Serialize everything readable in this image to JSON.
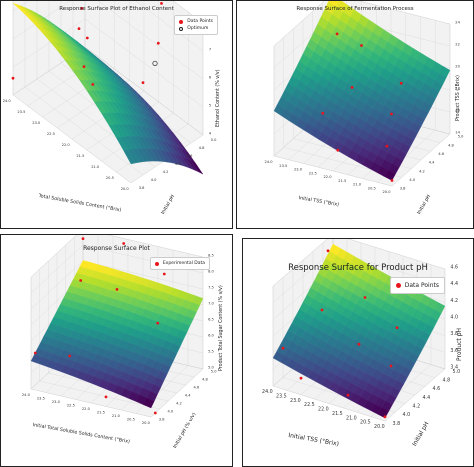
{
  "chart_data": [
    {
      "type": "surface3d",
      "title": "Response Surface Plot of Ethanol Content",
      "xlabel": "Total Soluble Solids Content (°Brix)",
      "ylabel": "Initial pH",
      "zlabel": "Ethanol Content (% v/v)",
      "x_ticks": [
        "20.0",
        "20.5",
        "21.0",
        "21.5",
        "22.0",
        "22.5",
        "23.0",
        "23.5",
        "24.0"
      ],
      "y_ticks": [
        "3.8",
        "4.0",
        "4.2",
        "4.4",
        "4.6",
        "4.8",
        "5.0"
      ],
      "z_ticks": [
        "4",
        "5",
        "6",
        "7",
        "8"
      ],
      "xlim": [
        20.0,
        24.0
      ],
      "ylim": [
        3.8,
        5.0
      ],
      "zlim": [
        4,
        8
      ],
      "legend": [
        "Data Points",
        "Optimum"
      ],
      "legend_position": "top-right",
      "colormap": "viridis",
      "points": [
        {
          "x": 20.0,
          "y": 4.0,
          "z": 7.3
        },
        {
          "x": 20.5,
          "y": 4.5,
          "z": 7.6
        },
        {
          "x": 21.0,
          "y": 4.8,
          "z": 8.2
        },
        {
          "x": 21.5,
          "y": 3.9,
          "z": 6.2
        },
        {
          "x": 22.5,
          "y": 4.3,
          "z": 6.5
        },
        {
          "x": 23.5,
          "y": 4.7,
          "z": 6.2
        },
        {
          "x": 24.0,
          "y": 3.8,
          "z": 4.6
        },
        {
          "x": 24.0,
          "y": 4.9,
          "z": 4.8
        },
        {
          "x": 22.0,
          "y": 4.0,
          "z": 6.3
        }
      ],
      "optimum": {
        "x": 20.0,
        "y": 4.2,
        "z": 7.7
      }
    },
    {
      "type": "surface3d",
      "title": "Response Surface of Fermentation Process",
      "xlabel": "Initial TSS (°Brix)",
      "ylabel": "Initial pH",
      "zlabel": "Product TSS (°Brix)",
      "x_ticks": [
        "20.0",
        "20.5",
        "21.0",
        "21.5",
        "22.0",
        "22.5",
        "23.0",
        "23.5",
        "24.0"
      ],
      "y_ticks": [
        "3.8",
        "4.0",
        "4.2",
        "4.4",
        "4.6",
        "4.8",
        "5.0"
      ],
      "z_ticks": [
        "14",
        "16",
        "18",
        "20",
        "22",
        "24"
      ],
      "xlim": [
        20.0,
        24.0
      ],
      "ylim": [
        3.8,
        5.0
      ],
      "zlim": [
        14,
        24
      ],
      "colormap": "viridis",
      "points": [
        {
          "x": 20.0,
          "y": 3.8,
          "z": 14.5
        },
        {
          "x": 20.5,
          "y": 4.0,
          "z": 16.5
        },
        {
          "x": 21.0,
          "y": 4.4,
          "z": 17.5
        },
        {
          "x": 21.0,
          "y": 4.6,
          "z": 19.5
        },
        {
          "x": 22.0,
          "y": 3.9,
          "z": 15.5
        },
        {
          "x": 22.5,
          "y": 4.5,
          "z": 18.5
        },
        {
          "x": 23.0,
          "y": 4.2,
          "z": 17.0
        },
        {
          "x": 23.5,
          "y": 4.8,
          "z": 21.5
        },
        {
          "x": 24.0,
          "y": 5.0,
          "z": 23.5
        },
        {
          "x": 23.0,
          "y": 5.0,
          "z": 20.0
        }
      ]
    },
    {
      "type": "surface3d",
      "title": "Response Surface Plot",
      "xlabel": "Initial Total Soluble Solids Content (°Brix)",
      "ylabel": "Initial pH (% v/v)",
      "zlabel": "Product Total Sugar Content (% v/v)",
      "x_ticks": [
        "20.0",
        "20.5",
        "21.0",
        "21.5",
        "22.0",
        "22.5",
        "23.0",
        "23.5",
        "24.0"
      ],
      "y_ticks": [
        "3.8",
        "4.0",
        "4.2",
        "4.4",
        "4.6",
        "4.8",
        "5.0"
      ],
      "z_ticks": [
        "5.0",
        "5.5",
        "6.0",
        "6.5",
        "7.0",
        "7.5",
        "8.0",
        "8.5"
      ],
      "xlim": [
        20.0,
        24.0
      ],
      "ylim": [
        3.8,
        5.0
      ],
      "zlim": [
        5.0,
        8.5
      ],
      "legend": [
        "Experimental Data"
      ],
      "legend_position": "top-right",
      "colormap": "viridis",
      "points": [
        {
          "x": 20.0,
          "y": 3.9,
          "z": 5.0
        },
        {
          "x": 20.5,
          "y": 4.3,
          "z": 7.2
        },
        {
          "x": 21.0,
          "y": 4.8,
          "z": 8.0
        },
        {
          "x": 21.5,
          "y": 3.8,
          "z": 5.3
        },
        {
          "x": 22.0,
          "y": 4.4,
          "z": 7.8
        },
        {
          "x": 22.5,
          "y": 4.9,
          "z": 8.5
        },
        {
          "x": 23.0,
          "y": 4.0,
          "z": 6.0
        },
        {
          "x": 23.5,
          "y": 4.6,
          "z": 7.5
        },
        {
          "x": 24.0,
          "y": 3.9,
          "z": 6.0
        },
        {
          "x": 24.0,
          "y": 5.0,
          "z": 8.2
        }
      ]
    },
    {
      "type": "surface3d",
      "title": "Response Surface for Product pH",
      "xlabel": "Initial TSS (°Brix)",
      "ylabel": "Initial pH",
      "zlabel": "Product pH",
      "x_ticks": [
        "20.0",
        "20.5",
        "21.0",
        "21.5",
        "22.0",
        "22.5",
        "23.0",
        "23.5",
        "24.0"
      ],
      "y_ticks": [
        "3.8",
        "4.0",
        "4.2",
        "4.4",
        "4.6",
        "4.8",
        "5.0"
      ],
      "z_ticks": [
        "3.4",
        "3.6",
        "3.8",
        "4.0",
        "4.2",
        "4.4",
        "4.6"
      ],
      "xlim": [
        20.0,
        24.0
      ],
      "ylim": [
        3.8,
        5.0
      ],
      "zlim": [
        3.4,
        4.6
      ],
      "legend": [
        "Data Points"
      ],
      "legend_position": "top-right",
      "colormap": "viridis",
      "points": [
        {
          "x": 20.0,
          "y": 3.8,
          "z": 3.45
        },
        {
          "x": 20.5,
          "y": 4.2,
          "z": 3.8
        },
        {
          "x": 21.0,
          "y": 4.6,
          "z": 4.0
        },
        {
          "x": 21.5,
          "y": 3.9,
          "z": 3.5
        },
        {
          "x": 22.0,
          "y": 4.4,
          "z": 3.8
        },
        {
          "x": 22.5,
          "y": 4.8,
          "z": 4.1
        },
        {
          "x": 23.0,
          "y": 3.8,
          "z": 3.6
        },
        {
          "x": 23.5,
          "y": 4.5,
          "z": 4.0
        },
        {
          "x": 24.0,
          "y": 4.9,
          "z": 4.45
        },
        {
          "x": 24.0,
          "y": 4.0,
          "z": 3.75
        }
      ]
    }
  ]
}
